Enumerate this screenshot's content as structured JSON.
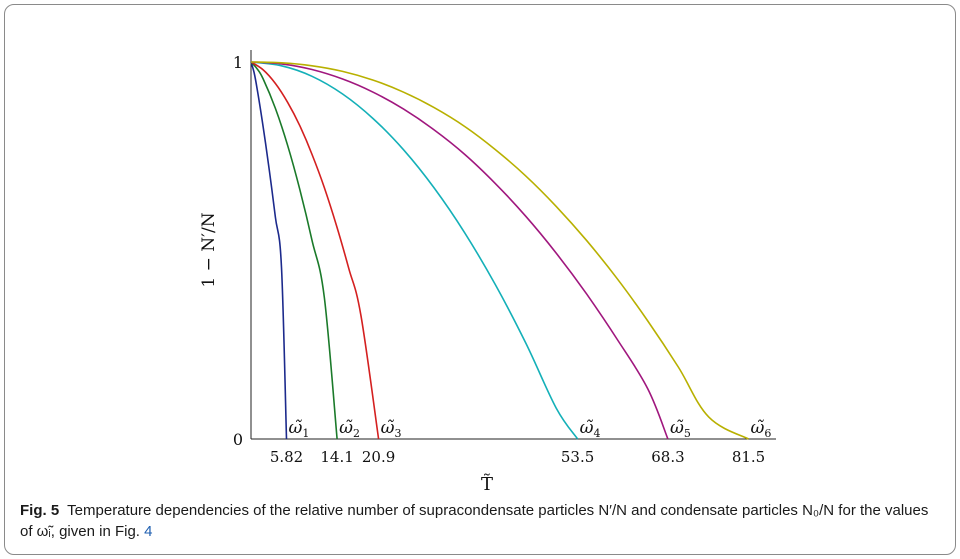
{
  "chart_data": {
    "type": "line",
    "xlabel": "T̃",
    "ylabel": "1 − N′/N",
    "xlim": [
      0,
      86
    ],
    "ylim": [
      0,
      1
    ],
    "yticks": [
      "0",
      "1"
    ],
    "xticks": [
      5.82,
      14.1,
      20.9,
      53.5,
      68.3,
      81.5
    ],
    "xtick_labels": [
      "5.82",
      "14.1",
      "20.9",
      "53.5",
      "68.3",
      "81.5"
    ],
    "grid": false,
    "series": [
      {
        "name": "ω̃1",
        "color": "#1c2a8c",
        "x": [
          0,
          0.5,
          1,
          2,
          3,
          4,
          5,
          5.82
        ],
        "y": [
          1.0,
          0.972,
          0.929,
          0.827,
          0.713,
          0.588,
          0.455,
          0.0
        ]
      },
      {
        "name": "ω̃2",
        "color": "#1b7a2a",
        "x": [
          0,
          1,
          2,
          4,
          6,
          8,
          10,
          12,
          14.1
        ],
        "y": [
          1.0,
          0.982,
          0.955,
          0.877,
          0.779,
          0.662,
          0.527,
          0.376,
          0.0
        ]
      },
      {
        "name": "ω̃3",
        "color": "#d42020",
        "x": [
          0,
          2,
          4,
          6,
          8,
          10,
          12,
          14,
          16,
          18,
          20.9
        ],
        "y": [
          1.0,
          0.979,
          0.943,
          0.893,
          0.831,
          0.755,
          0.667,
          0.566,
          0.453,
          0.328,
          0.0
        ]
      },
      {
        "name": "ω̃4",
        "color": "#14b0b8",
        "x": [
          0,
          5,
          10,
          15,
          20,
          25,
          30,
          35,
          40,
          45,
          50,
          53.5
        ],
        "y": [
          1.0,
          0.99,
          0.962,
          0.915,
          0.85,
          0.767,
          0.666,
          0.547,
          0.41,
          0.255,
          0.082,
          0.0
        ]
      },
      {
        "name": "ω̃5",
        "color": "#a0177e",
        "x": [
          0,
          5,
          10,
          15,
          20,
          25,
          30,
          35,
          40,
          45,
          50,
          55,
          60,
          65,
          68.3
        ],
        "y": [
          1.0,
          0.995,
          0.98,
          0.955,
          0.92,
          0.875,
          0.82,
          0.755,
          0.678,
          0.591,
          0.493,
          0.384,
          0.264,
          0.133,
          0.0
        ]
      },
      {
        "name": "ω̃6",
        "color": "#b8b000",
        "x": [
          0,
          5,
          10,
          15,
          20,
          25,
          30,
          35,
          40,
          45,
          50,
          55,
          60,
          65,
          70,
          75,
          81.5
        ],
        "y": [
          1.0,
          0.998,
          0.99,
          0.975,
          0.952,
          0.92,
          0.879,
          0.829,
          0.768,
          0.698,
          0.617,
          0.526,
          0.425,
          0.313,
          0.191,
          0.058,
          0.0
        ]
      }
    ]
  },
  "caption": {
    "label": "Fig. 5",
    "text": "Temperature dependencies of the relative number of supracondensate particles N′/N and condensate particles N₀/N for the values of ω̃ᵢ, given in Fig. ",
    "ref": "4"
  }
}
